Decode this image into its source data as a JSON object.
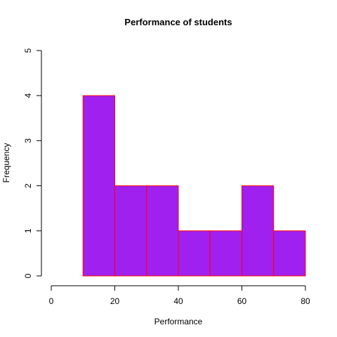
{
  "chart_data": {
    "type": "bar",
    "title": "Performance of students",
    "xlabel": "Performance",
    "ylabel": "Frequency",
    "bins": [
      {
        "from": 10,
        "to": 20,
        "count": 4
      },
      {
        "from": 20,
        "to": 30,
        "count": 2
      },
      {
        "from": 30,
        "to": 40,
        "count": 2
      },
      {
        "from": 40,
        "to": 50,
        "count": 1
      },
      {
        "from": 50,
        "to": 60,
        "count": 1
      },
      {
        "from": 60,
        "to": 70,
        "count": 2
      },
      {
        "from": 70,
        "to": 80,
        "count": 1
      }
    ],
    "xlim": [
      0,
      80
    ],
    "ylim": [
      0,
      5
    ],
    "x_ticks": [
      "0",
      "20",
      "40",
      "60",
      "80"
    ],
    "y_ticks": [
      "0",
      "1",
      "2",
      "3",
      "4",
      "5"
    ],
    "grid": false,
    "bar_fill": "#a020f0",
    "bar_border": "#ff0000"
  }
}
